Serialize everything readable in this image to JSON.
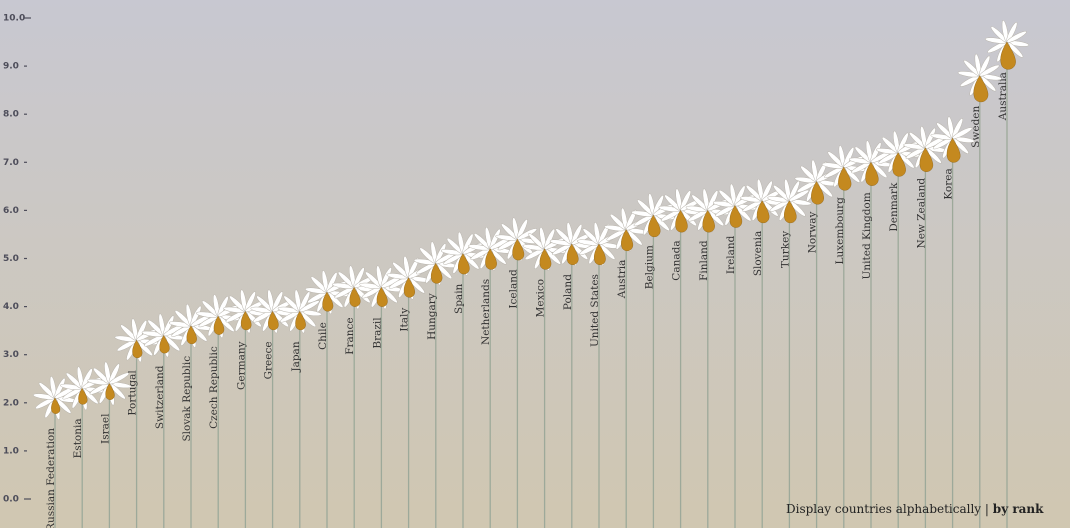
{
  "chart_data": {
    "type": "flower",
    "categories": [
      "Russian Federation",
      "Estonia",
      "Israel",
      "Portugal",
      "Switzerland",
      "Slovak Republic",
      "Czech Republic",
      "Germany",
      "Greece",
      "Japan",
      "Chile",
      "France",
      "Brazil",
      "Italy",
      "Hungary",
      "Spain",
      "Netherlands",
      "Iceland",
      "Mexico",
      "Poland",
      "United States",
      "Austria",
      "Belgium",
      "Canada",
      "Finland",
      "Ireland",
      "Slovenia",
      "Turkey",
      "Norway",
      "Luxembourg",
      "United Kingdom",
      "Denmark",
      "New Zealand",
      "Korea",
      "Sweden",
      "Australia"
    ],
    "values": [
      2.1,
      2.3,
      2.4,
      3.3,
      3.4,
      3.6,
      3.8,
      3.9,
      3.9,
      3.9,
      4.3,
      4.4,
      4.4,
      4.6,
      4.9,
      5.1,
      5.2,
      5.4,
      5.2,
      5.3,
      5.3,
      5.6,
      5.9,
      6.0,
      6.0,
      6.1,
      6.2,
      6.2,
      6.6,
      6.9,
      7.0,
      7.2,
      7.3,
      7.5,
      8.8,
      9.5
    ],
    "color": "#c4891f",
    "petal_color": "#ffffff",
    "stem_color": "#9da99a",
    "ylim": [
      0,
      10
    ],
    "yticks": [
      {
        "value": 0,
        "label": "0.0"
      },
      {
        "value": 1,
        "label": "1.0"
      },
      {
        "value": 2,
        "label": "2.0"
      },
      {
        "value": 3,
        "label": "3.0"
      },
      {
        "value": 4,
        "label": "4.0"
      },
      {
        "value": 5,
        "label": "5.0"
      },
      {
        "value": 6,
        "label": "6.0"
      },
      {
        "value": 7,
        "label": "7.0"
      },
      {
        "value": 8,
        "label": "8.0"
      },
      {
        "value": 9,
        "label": "9.0"
      },
      {
        "value": 10,
        "label": "10.0"
      }
    ]
  },
  "controls": {
    "alphabetical": "Display countries alphabetically",
    "separator": "|",
    "rank": "by rank"
  }
}
